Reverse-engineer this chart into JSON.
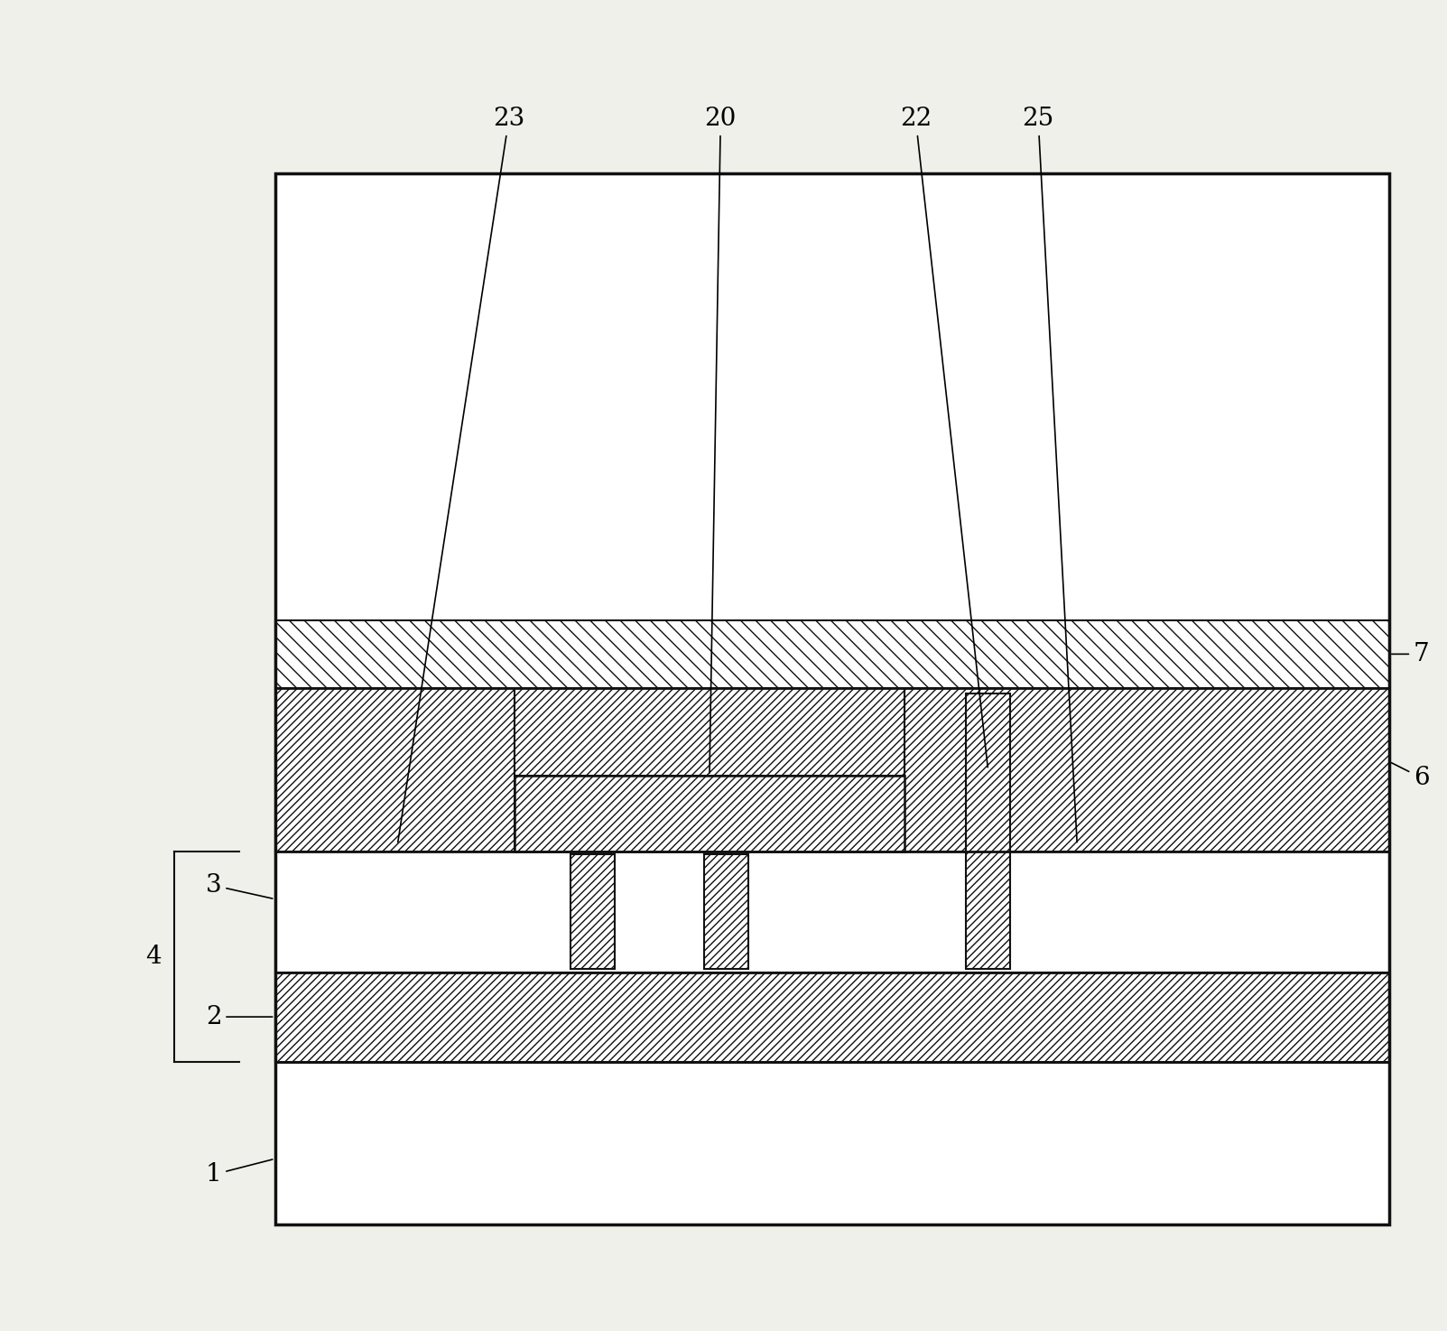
{
  "bg_color": "#f0f0eb",
  "white": "#ffffff",
  "black": "#000000",
  "line_color": "#111111",
  "fig_width": 16.03,
  "fig_height": 14.74
}
